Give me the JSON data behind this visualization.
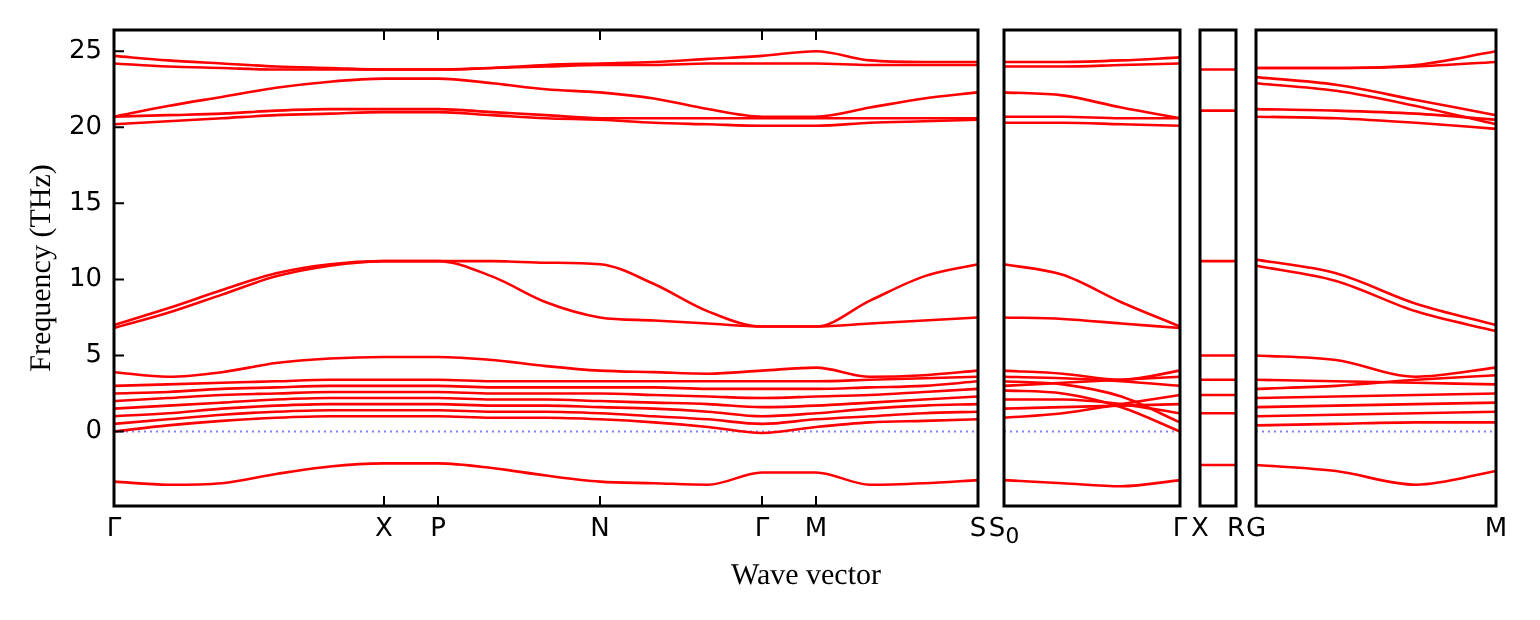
{
  "chart_data": [
    {
      "type": "line",
      "ylabel": "Frequency (THz)",
      "xlabel": "Wave vector",
      "categories": [
        "Γ",
        null,
        null,
        null,
        null,
        "X",
        "P",
        null,
        null,
        "N",
        null,
        null,
        "Γ",
        "M",
        null,
        null,
        "S"
      ],
      "ylim": [
        -4.9,
        26.4
      ],
      "yticks": [
        0,
        5,
        10,
        15,
        20,
        25
      ],
      "grid": false,
      "legend": false,
      "ref_lines": [
        {
          "axis": "y",
          "value": 0,
          "color": "#8080ff",
          "line_style": "dotted"
        }
      ],
      "series": [
        {
          "color": "#ff0000",
          "values": [
            24.7,
            24.4,
            24.2,
            24.0,
            23.9,
            23.8,
            23.8,
            23.9,
            24.1,
            24.2,
            24.3,
            24.5,
            24.7,
            25.0,
            24.4,
            24.3,
            24.3
          ]
        },
        {
          "color": "#ff0000",
          "values": [
            24.2,
            24.0,
            23.9,
            23.8,
            23.8,
            23.8,
            23.8,
            23.9,
            24.0,
            24.1,
            24.1,
            24.2,
            24.2,
            24.2,
            24.1,
            24.1,
            24.1
          ]
        },
        {
          "color": "#ff0000",
          "values": [
            20.7,
            21.4,
            22.0,
            22.6,
            23.0,
            23.2,
            23.2,
            22.9,
            22.5,
            22.3,
            21.9,
            21.2,
            20.7,
            20.7,
            21.3,
            21.9,
            22.3
          ]
        },
        {
          "color": "#ff0000",
          "values": [
            20.7,
            20.8,
            20.9,
            21.1,
            21.2,
            21.2,
            21.2,
            21.0,
            20.8,
            20.6,
            20.6,
            20.6,
            20.6,
            20.6,
            20.6,
            20.6,
            20.6
          ]
        },
        {
          "color": "#ff0000",
          "values": [
            20.2,
            20.4,
            20.6,
            20.8,
            20.9,
            21.0,
            21.0,
            20.8,
            20.6,
            20.5,
            20.3,
            20.2,
            20.1,
            20.1,
            20.3,
            20.4,
            20.5
          ]
        },
        {
          "color": "#ff0000",
          "values": [
            7.0,
            8.1,
            9.3,
            10.4,
            11.0,
            11.2,
            11.2,
            11.2,
            11.1,
            11.0,
            9.7,
            7.9,
            6.9,
            6.9,
            8.6,
            10.2,
            11.0
          ]
        },
        {
          "color": "#ff0000",
          "values": [
            6.8,
            7.8,
            9.0,
            10.2,
            10.9,
            11.2,
            11.2,
            10.2,
            8.5,
            7.5,
            7.3,
            7.1,
            6.9,
            6.9,
            7.1,
            7.3,
            7.5
          ]
        },
        {
          "color": "#ff0000",
          "values": [
            3.9,
            3.6,
            3.9,
            4.5,
            4.8,
            4.9,
            4.9,
            4.7,
            4.3,
            4.0,
            3.9,
            3.8,
            4.0,
            4.2,
            3.6,
            3.7,
            4.0
          ]
        },
        {
          "color": "#ff0000",
          "values": [
            0,
            0.4,
            0.7,
            0.9,
            1.0,
            1.0,
            1.0,
            0.9,
            0.9,
            0.8,
            0.6,
            0.3,
            -0.1,
            0.3,
            0.6,
            0.7,
            0.8
          ]
        },
        {
          "color": "#ff0000",
          "values": [
            0.5,
            0.8,
            1.1,
            1.3,
            1.4,
            1.4,
            1.4,
            1.3,
            1.3,
            1.2,
            1.0,
            0.8,
            0.5,
            0.8,
            1.0,
            1.2,
            1.3
          ]
        },
        {
          "color": "#ff0000",
          "values": [
            1.0,
            1.2,
            1.5,
            1.7,
            1.8,
            1.8,
            1.8,
            1.7,
            1.7,
            1.6,
            1.5,
            1.3,
            1.0,
            1.2,
            1.5,
            1.7,
            1.8
          ]
        },
        {
          "color": "#ff0000",
          "values": [
            1.5,
            1.7,
            1.9,
            2.1,
            2.2,
            2.2,
            2.2,
            2.1,
            2.1,
            2.0,
            1.9,
            1.8,
            1.6,
            1.7,
            1.9,
            2.1,
            2.3
          ]
        },
        {
          "color": "#ff0000",
          "values": [
            2.0,
            2.2,
            2.4,
            2.5,
            2.6,
            2.6,
            2.6,
            2.5,
            2.5,
            2.5,
            2.4,
            2.3,
            2.2,
            2.3,
            2.4,
            2.6,
            2.8
          ]
        },
        {
          "color": "#ff0000",
          "values": [
            2.5,
            2.6,
            2.8,
            2.9,
            3.0,
            3.0,
            3.0,
            2.9,
            2.9,
            2.9,
            2.9,
            2.8,
            2.8,
            2.8,
            2.9,
            3.0,
            3.3
          ]
        },
        {
          "color": "#ff0000",
          "values": [
            3.0,
            3.1,
            3.2,
            3.3,
            3.4,
            3.4,
            3.4,
            3.3,
            3.3,
            3.3,
            3.3,
            3.3,
            3.3,
            3.3,
            3.4,
            3.5,
            3.6
          ]
        },
        {
          "color": "#ff0000",
          "values": [
            -3.3,
            -3.5,
            -3.4,
            -2.8,
            -2.3,
            -2.1,
            -2.1,
            -2.4,
            -2.9,
            -3.3,
            -3.4,
            -3.5,
            -2.7,
            -2.7,
            -3.5,
            -3.4,
            -3.2
          ]
        }
      ]
    },
    {
      "type": "line",
      "categories": [
        "S$_{0}$",
        null,
        null,
        "Γ"
      ],
      "ylim": [
        -4.9,
        26.4
      ],
      "yticks": [
        0,
        5,
        10,
        15,
        20,
        25
      ],
      "tick_labels": "x",
      "grid": false,
      "legend": false,
      "ref_lines": [
        {
          "axis": "y",
          "value": 0,
          "color": "#8080ff",
          "line_style": "dotted"
        }
      ],
      "series": [
        {
          "color": "#ff0000",
          "values": [
            24.3,
            24.3,
            24.4,
            24.6
          ]
        },
        {
          "color": "#ff0000",
          "values": [
            24.0,
            24.0,
            24.1,
            24.2
          ]
        },
        {
          "color": "#ff0000",
          "values": [
            22.3,
            22.1,
            21.3,
            20.6
          ]
        },
        {
          "color": "#ff0000",
          "values": [
            20.7,
            20.7,
            20.6,
            20.6
          ]
        },
        {
          "color": "#ff0000",
          "values": [
            20.3,
            20.3,
            20.2,
            20.1
          ]
        },
        {
          "color": "#ff0000",
          "values": [
            11.0,
            10.3,
            8.5,
            6.9
          ]
        },
        {
          "color": "#ff0000",
          "values": [
            7.5,
            7.4,
            7.1,
            6.8
          ]
        },
        {
          "color": "#ff0000",
          "values": [
            4.0,
            3.8,
            3.4,
            4.0
          ]
        },
        {
          "color": "#ff0000",
          "values": [
            2.7,
            2.5,
            1.6,
            0.0
          ]
        },
        {
          "color": "#ff0000",
          "values": [
            3.3,
            3.1,
            2.3,
            0.6
          ]
        },
        {
          "color": "#ff0000",
          "values": [
            2.1,
            2.1,
            1.8,
            1.2
          ]
        },
        {
          "color": "#ff0000",
          "values": [
            1.5,
            1.6,
            1.7,
            1.8
          ]
        },
        {
          "color": "#ff0000",
          "values": [
            0.9,
            1.2,
            1.8,
            2.4
          ]
        },
        {
          "color": "#ff0000",
          "values": [
            3.6,
            3.5,
            3.3,
            3.0
          ]
        },
        {
          "color": "#ff0000",
          "values": [
            3.0,
            3.2,
            3.4,
            3.6
          ]
        },
        {
          "color": "#ff0000",
          "values": [
            -3.2,
            -3.4,
            -3.6,
            -3.2
          ]
        }
      ]
    },
    {
      "type": "line",
      "categories": [
        "X",
        "R"
      ],
      "ylim": [
        -4.9,
        26.4
      ],
      "yticks": [
        0,
        5,
        10,
        15,
        20,
        25
      ],
      "tick_labels": "x",
      "grid": false,
      "legend": false,
      "series": [
        {
          "color": "#ff0000",
          "values": [
            23.8,
            23.8
          ]
        },
        {
          "color": "#ff0000",
          "values": [
            21.1,
            21.1
          ]
        },
        {
          "color": "#ff0000",
          "values": [
            11.2,
            11.2
          ]
        },
        {
          "color": "#ff0000",
          "values": [
            5.0,
            5.0
          ]
        },
        {
          "color": "#ff0000",
          "values": [
            3.4,
            3.4
          ]
        },
        {
          "color": "#ff0000",
          "values": [
            2.4,
            2.4
          ]
        },
        {
          "color": "#ff0000",
          "values": [
            1.2,
            1.2
          ]
        },
        {
          "color": "#ff0000",
          "values": [
            -2.2,
            -2.2
          ]
        }
      ]
    },
    {
      "type": "line",
      "categories": [
        "G",
        null,
        null,
        "M"
      ],
      "ylim": [
        -4.9,
        26.4
      ],
      "yticks": [
        0,
        5,
        10,
        15,
        20,
        25
      ],
      "tick_labels": "x",
      "grid": false,
      "legend": false,
      "ref_lines": [
        {
          "axis": "y",
          "value": 0,
          "color": "#8080ff",
          "line_style": "dotted"
        }
      ],
      "series": [
        {
          "color": "#ff0000",
          "values": [
            23.9,
            23.9,
            24.1,
            25.0
          ]
        },
        {
          "color": "#ff0000",
          "values": [
            23.9,
            23.9,
            24.0,
            24.3
          ]
        },
        {
          "color": "#ff0000",
          "values": [
            23.3,
            22.8,
            21.8,
            20.8
          ]
        },
        {
          "color": "#ff0000",
          "values": [
            22.9,
            22.4,
            21.4,
            20.2
          ]
        },
        {
          "color": "#ff0000",
          "values": [
            21.2,
            21.1,
            20.9,
            20.5
          ]
        },
        {
          "color": "#ff0000",
          "values": [
            20.7,
            20.6,
            20.3,
            19.9
          ]
        },
        {
          "color": "#ff0000",
          "values": [
            11.3,
            10.4,
            8.4,
            7.0
          ]
        },
        {
          "color": "#ff0000",
          "values": [
            10.9,
            9.9,
            7.9,
            6.6
          ]
        },
        {
          "color": "#ff0000",
          "values": [
            5.0,
            4.7,
            3.6,
            4.2
          ]
        },
        {
          "color": "#ff0000",
          "values": [
            3.4,
            3.3,
            3.2,
            3.1
          ]
        },
        {
          "color": "#ff0000",
          "values": [
            2.8,
            3.0,
            3.4,
            3.7
          ]
        },
        {
          "color": "#ff0000",
          "values": [
            2.2,
            2.3,
            2.4,
            2.5
          ]
        },
        {
          "color": "#ff0000",
          "values": [
            1.6,
            1.7,
            1.8,
            1.9
          ]
        },
        {
          "color": "#ff0000",
          "values": [
            1.0,
            1.1,
            1.2,
            1.3
          ]
        },
        {
          "color": "#ff0000",
          "values": [
            0.4,
            0.5,
            0.6,
            0.6
          ]
        },
        {
          "color": "#ff0000",
          "values": [
            -2.2,
            -2.6,
            -3.5,
            -2.6
          ]
        }
      ]
    }
  ]
}
